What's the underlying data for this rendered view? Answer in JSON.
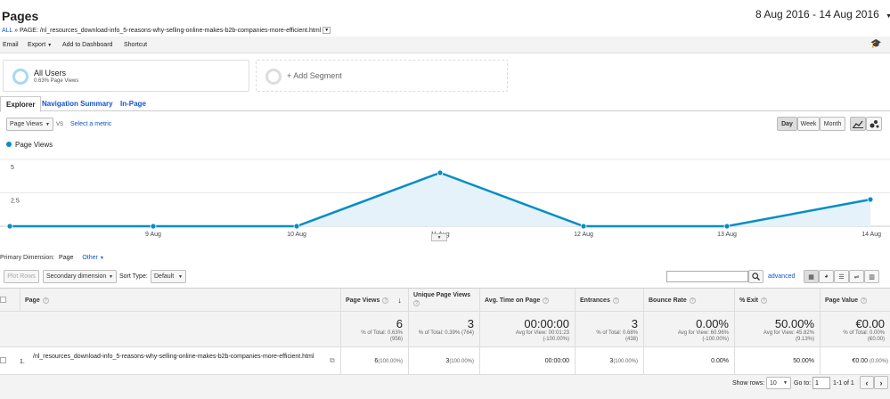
{
  "header": {
    "title": "Pages",
    "breadcrumb_all": "ALL",
    "breadcrumb_sep": "»",
    "breadcrumb_label": "PAGE:",
    "breadcrumb_path": "/nl_resources_download-info_5-reasons-why-selling-online-makes-b2b-companies-more-efficient.html",
    "date_range": "8 Aug 2016 - 14 Aug 2016"
  },
  "toolbar": {
    "email": "Email",
    "export": "Export",
    "add_dashboard": "Add to Dashboard",
    "shortcut": "Shortcut"
  },
  "segments": {
    "all_users": "All Users",
    "all_users_sub": "0.63% Page Views",
    "add_segment": "+ Add Segment"
  },
  "tabs": [
    "Explorer",
    "Navigation Summary",
    "In-Page"
  ],
  "controls": {
    "metric": "Page Views",
    "vs": "VS",
    "select_metric": "Select a metric",
    "day": "Day",
    "week": "Week",
    "month": "Month"
  },
  "chart_data": {
    "type": "area",
    "legend": "Page Views",
    "x": [
      "8 Aug",
      "9 Aug",
      "10 Aug",
      "11 Aug",
      "12 Aug",
      "13 Aug",
      "14 Aug"
    ],
    "x_tick_labels": [
      "",
      "9 Aug",
      "10 Aug",
      "11 Aug",
      "12 Aug",
      "13 Aug",
      "14 Aug"
    ],
    "values": [
      0,
      0,
      0,
      4,
      0,
      0,
      2
    ],
    "y_ticks": [
      "5",
      "2.5"
    ],
    "ylim": [
      0,
      5
    ],
    "color": "#058dc7"
  },
  "dimension": {
    "label": "Primary Dimension:",
    "value": "Page",
    "other": "Other"
  },
  "table_controls": {
    "plot_rows": "Plot Rows",
    "secondary": "Secondary dimension",
    "sort_type_label": "Sort Type:",
    "sort_type": "Default",
    "advanced": "advanced"
  },
  "columns": {
    "page": "Page",
    "page_views": "Page Views",
    "unique": "Unique Page Views",
    "avg_time": "Avg. Time on Page",
    "entrances": "Entrances",
    "bounce": "Bounce Rate",
    "exit": "% Exit",
    "value": "Page Value"
  },
  "totals": {
    "page_views": "6",
    "page_views_sub1": "% of Total: 0.63%",
    "page_views_sub2": "(956)",
    "unique": "3",
    "unique_sub1": "% of Total: 0.39% (764)",
    "avg_time": "00:00:00",
    "avg_time_sub1": "Avg for View: 00:01:23",
    "avg_time_sub2": "(-100.00%)",
    "entrances": "3",
    "entrances_sub1": "% of Total: 0.68%",
    "entrances_sub2": "(438)",
    "bounce": "0.00%",
    "bounce_sub1": "Avg for View: 60.96%",
    "bounce_sub2": "(-100.00%)",
    "exit": "50.00%",
    "exit_sub1": "Avg for View: 45.82%",
    "exit_sub2": "(9.13%)",
    "value": "€0.00",
    "value_sub1": "% of Total: 0.00%",
    "value_sub2": "(€0.00)"
  },
  "rows": [
    {
      "index": "1.",
      "page": "/nl_resources_download-info_5-reasons-why-selling-online-makes-b2b-companies-more-efficient.html",
      "page_views": "6",
      "page_views_pct": "(100.00%)",
      "unique": "3",
      "unique_pct": "(100.00%)",
      "avg_time": "00:00:00",
      "entrances": "3",
      "entrances_pct": "(100.00%)",
      "bounce": "0.00%",
      "exit": "50.00%",
      "value": "€0.00",
      "value_pct": "(0.00%)"
    }
  ],
  "pagination": {
    "show_rows": "Show rows:",
    "rows": "10",
    "goto": "Go to:",
    "page": "1",
    "range": "1-1 of 1"
  }
}
